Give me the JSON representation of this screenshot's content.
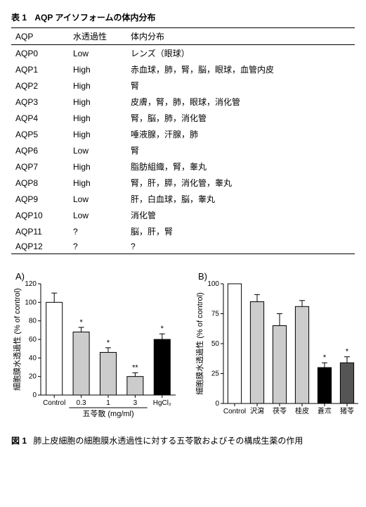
{
  "table": {
    "label": "表 1",
    "caption": "AQP アイソフォームの体内分布",
    "columns": [
      "AQP",
      "水透過性",
      "体内分布"
    ],
    "rows": [
      [
        "AQP0",
        "Low",
        "レンズ（眼球）"
      ],
      [
        "AQP1",
        "High",
        "赤血球，肺，腎，脳，眼球，血管内皮"
      ],
      [
        "AQP2",
        "High",
        "腎"
      ],
      [
        "AQP3",
        "High",
        "皮膚，腎，肺，眼球，消化管"
      ],
      [
        "AQP4",
        "High",
        "腎，脳，肺，消化管"
      ],
      [
        "AQP5",
        "High",
        "唾液腺，汗腺，肺"
      ],
      [
        "AQP6",
        "Low",
        "腎"
      ],
      [
        "AQP7",
        "High",
        "脂肪組織，腎，睾丸"
      ],
      [
        "AQP8",
        "High",
        "腎，肝，膵，消化管，睾丸"
      ],
      [
        "AQP9",
        "Low",
        "肝，白血球，脳，睾丸"
      ],
      [
        "AQP10",
        "Low",
        "消化管"
      ],
      [
        "AQP11",
        "?",
        "脳，肝，腎"
      ],
      [
        "AQP12",
        "?",
        "?"
      ]
    ]
  },
  "figure": {
    "label": "図 1",
    "caption": "肺上皮細胞の細胞膜水透過性に対する五苓散およびその構成生薬の作用"
  },
  "chartA": {
    "panel": "A)",
    "type": "bar",
    "ylabel": "細胞膜水透過性 (% of control)",
    "ylim": [
      0,
      120
    ],
    "ytick_step": 20,
    "x_group_label": "五苓散 (mg/ml)",
    "bars": [
      {
        "label": "Control",
        "value": 100,
        "err": 10,
        "fill": "#ffffff",
        "sig": ""
      },
      {
        "label": "0.3",
        "value": 68,
        "err": 5,
        "fill": "#cccccc",
        "sig": "*"
      },
      {
        "label": "1",
        "value": 46,
        "err": 5,
        "fill": "#cccccc",
        "sig": "*"
      },
      {
        "label": "3",
        "value": 20,
        "err": 4,
        "fill": "#cccccc",
        "sig": "**"
      },
      {
        "label": "HgCl₂",
        "value": 60,
        "err": 6,
        "fill": "#000000",
        "sig": "*"
      }
    ],
    "colors": {
      "axis": "#000000",
      "bg": "#ffffff"
    },
    "bar_width": 0.6
  },
  "chartB": {
    "panel": "B)",
    "type": "bar",
    "ylabel": "細胞膜水透過性 (% of control)",
    "ylim": [
      0,
      100
    ],
    "ytick_step": 25,
    "bars": [
      {
        "label": "Control",
        "value": 100,
        "err": 0,
        "fill": "#ffffff",
        "sig": ""
      },
      {
        "label": "沢瀉",
        "value": 85,
        "err": 6,
        "fill": "#cccccc",
        "sig": ""
      },
      {
        "label": "茯苓",
        "value": 65,
        "err": 10,
        "fill": "#cccccc",
        "sig": ""
      },
      {
        "label": "桂皮",
        "value": 81,
        "err": 5,
        "fill": "#cccccc",
        "sig": ""
      },
      {
        "label": "蒼朮",
        "value": 30,
        "err": 4,
        "fill": "#000000",
        "sig": "*"
      },
      {
        "label": "猪苓",
        "value": 34,
        "err": 5,
        "fill": "#555555",
        "sig": "*"
      }
    ],
    "colors": {
      "axis": "#000000",
      "bg": "#ffffff"
    },
    "bar_width": 0.6
  }
}
